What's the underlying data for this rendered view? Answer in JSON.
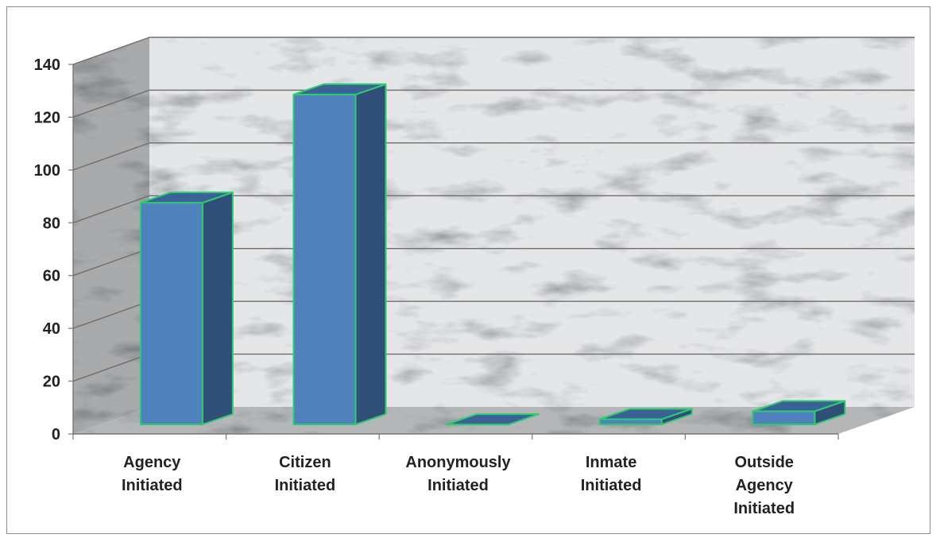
{
  "chart_data": {
    "type": "bar",
    "style": "3d-column",
    "categories": [
      [
        "Agency",
        "Initiated"
      ],
      [
        "Citizen",
        "Initiated"
      ],
      [
        "Anonymously",
        "Initiated"
      ],
      [
        "Inmate",
        "Initiated"
      ],
      [
        "Outside",
        "Agency",
        "Initiated"
      ]
    ],
    "values": [
      84,
      125,
      0,
      2,
      5
    ],
    "ylim": [
      0,
      140
    ],
    "yticks": [
      "0",
      "20",
      "40",
      "60",
      "80",
      "100",
      "120",
      "140"
    ],
    "grid": true,
    "legend": "none",
    "title": "",
    "xlabel": "",
    "ylabel": "",
    "colors": {
      "bar_front": "#4f81bd",
      "bar_side": "#2f4f78",
      "bar_top": "#3b6296",
      "bar_outline": "#2ecc71",
      "gridline": "#6e6e6e",
      "back_wall": "#e4e6e8",
      "side_wall": "#a8aaac",
      "floor": "#b4b6b8"
    }
  }
}
